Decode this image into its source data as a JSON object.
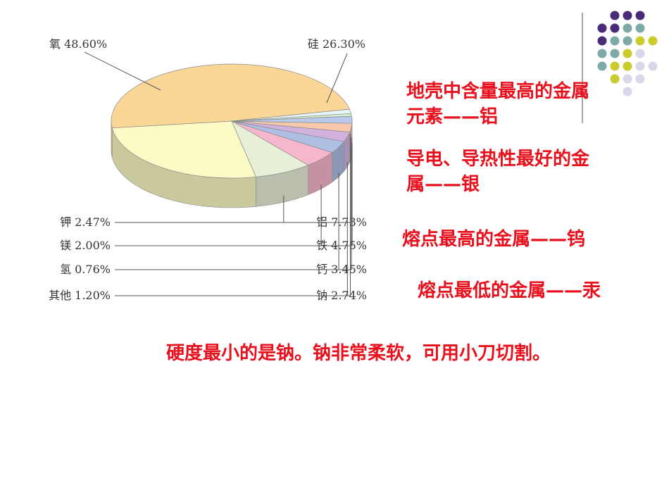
{
  "chart_data": {
    "type": "pie",
    "title": "",
    "slices": [
      {
        "label": "氧",
        "value": 48.6,
        "text": "氧 48.60%",
        "color": "#fbd797"
      },
      {
        "label": "硅",
        "value": 26.3,
        "text": "硅 26.30%",
        "color": "#fdfbc5"
      },
      {
        "label": "铝",
        "value": 7.73,
        "text": "铝 7.73%",
        "color": "#e7efd7"
      },
      {
        "label": "铁",
        "value": 4.75,
        "text": "铁 4.75%",
        "color": "#f6b6cc"
      },
      {
        "label": "钙",
        "value": 3.45,
        "text": "钙 3.45%",
        "color": "#aebfe3"
      },
      {
        "label": "钠",
        "value": 2.74,
        "text": "钠 2.74%",
        "color": "#d2b1df"
      },
      {
        "label": "钾",
        "value": 2.47,
        "text": "钾 2.47%",
        "color": "#f8c8aa"
      },
      {
        "label": "镁",
        "value": 2.0,
        "text": "镁 2.00%",
        "color": "#b8c9ec"
      },
      {
        "label": "氢",
        "value": 0.76,
        "text": "氢 0.76%",
        "color": "#d6f0d0"
      },
      {
        "label": "其他",
        "value": 1.2,
        "text": "其他 1.20%",
        "color": "#e6f6fb"
      }
    ]
  },
  "notes": {
    "aluminum_line1": "地壳中含量最高的金属",
    "aluminum_line2": "元素——铝",
    "silver_line1": "导电、导热性最好的金",
    "silver_line2": "属——银",
    "tungsten": "熔点最高的金属——钨",
    "mercury": "熔点最低的金属——汞",
    "sodium": "硬度最小的是钠。钠非常柔软，可用小刀切割。"
  },
  "colors": {
    "note_text": "#e8101c",
    "dot_purple": "#4b2a78",
    "dot_teal": "#7fa9a6",
    "dot_olive": "#c9cc2a",
    "dot_lavender": "#d9d8ea"
  }
}
